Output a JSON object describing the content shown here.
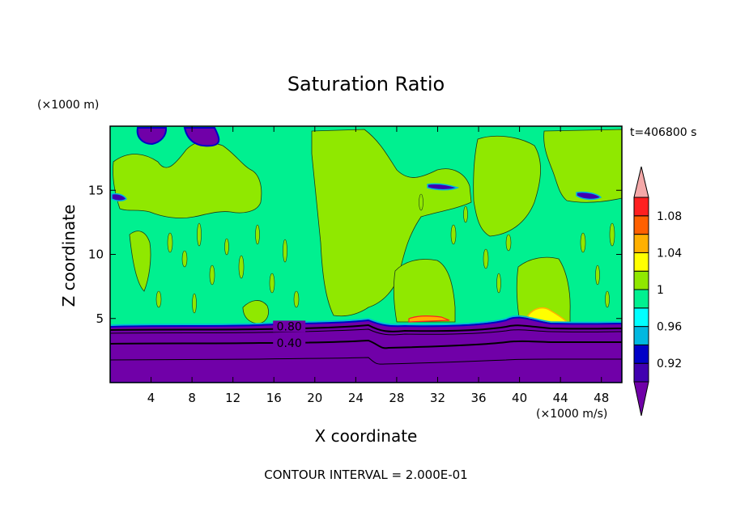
{
  "chart_data": {
    "type": "heatmap",
    "title": "Saturation Ratio",
    "xlabel": "X coordinate",
    "ylabel": "Z coordinate",
    "x_unit_label": "(×1000 m/s)",
    "y_unit_label": "(×1000 m)",
    "time_label": "t=406800 s",
    "footer": "CONTOUR INTERVAL = 2.000E-01",
    "xlim": [
      0,
      50
    ],
    "ylim": [
      0,
      20
    ],
    "x_ticks": [
      4,
      8,
      12,
      16,
      20,
      24,
      28,
      32,
      36,
      40,
      44,
      48
    ],
    "y_ticks": [
      5,
      10,
      15
    ],
    "contour_labels": [
      {
        "text": "0.80",
        "x": 17.5,
        "y": 4.2
      },
      {
        "text": "0.40",
        "x": 17.5,
        "y": 2.9
      }
    ],
    "colorbar": {
      "levels": [
        "0.92",
        "0.96",
        "1",
        "1.04",
        "1.08"
      ],
      "colors": [
        "#7000a8",
        "#4000b0",
        "#0000c8",
        "#00b8e0",
        "#00ffff",
        "#00f090",
        "#90e800",
        "#ffff00",
        "#ffb000",
        "#ff6000",
        "#ff2020",
        "#f4a8a8"
      ]
    },
    "regions": [
      {
        "name": "below 0.90 (subsaturated lower layer)",
        "z_range": [
          0,
          4.6
        ],
        "color": "#7000a8"
      },
      {
        "name": "0.96-1.00 (background upper layer)",
        "z_range": [
          4.6,
          20
        ],
        "color": "#00f090"
      },
      {
        "name": "1.00-1.04 (supersaturated plumes)",
        "color": "#90e800"
      },
      {
        "name": "1.04-1.08 (peak patches near cloud base)",
        "color": "#ffff00"
      }
    ]
  }
}
